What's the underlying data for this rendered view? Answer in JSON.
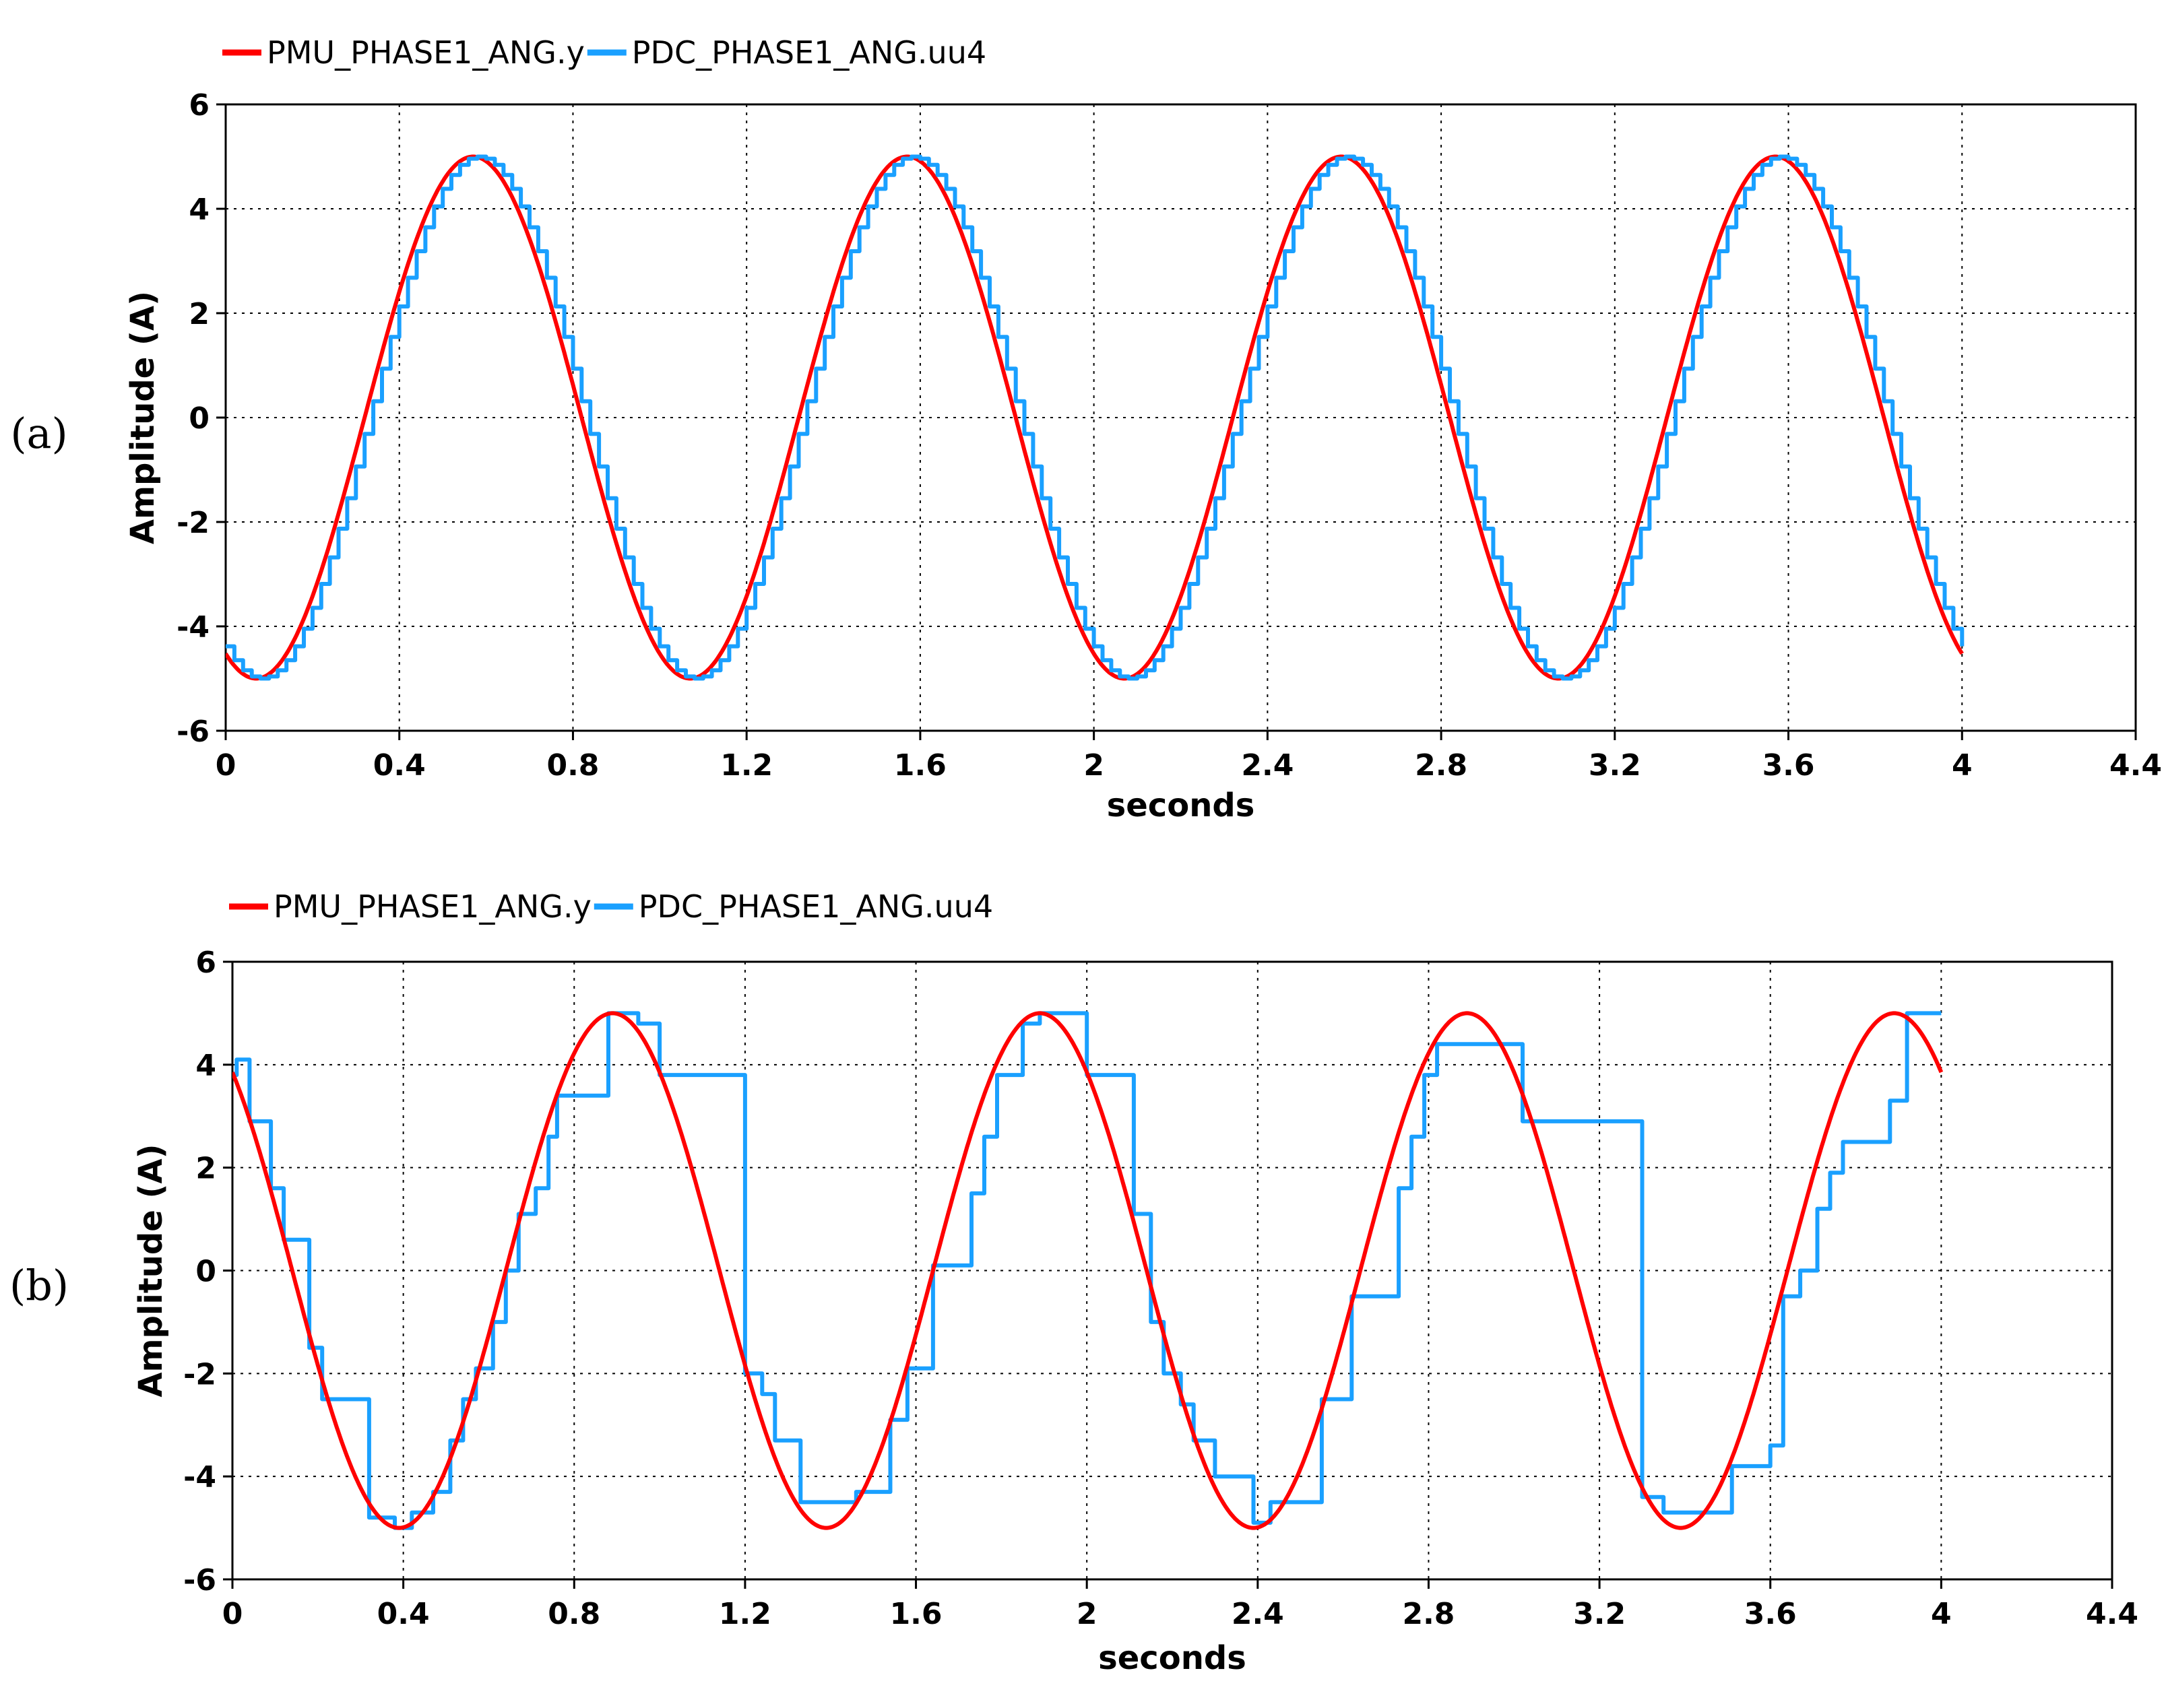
{
  "colors": {
    "pmu": "#ff0000",
    "pdc": "#1aa0ff",
    "grid": "#000000",
    "background": "#ffffff"
  },
  "chart_data": [
    {
      "type": "line",
      "panel_label": "(a)",
      "xlabel": "seconds",
      "ylabel": "Amplitude (A)",
      "xlim": [
        0,
        4.4
      ],
      "ylim": [
        -6,
        6
      ],
      "xticks": [
        "0",
        "0.4",
        "0.8",
        "1.2",
        "1.6",
        "2",
        "2.4",
        "2.8",
        "3.2",
        "3.6",
        "4",
        "4.4"
      ],
      "yticks": [
        "-6",
        "-4",
        "-2",
        "0",
        "2",
        "4",
        "6"
      ],
      "grid": true,
      "legend_position": "top-left",
      "series": [
        {
          "name": "PMU_PHASE1_ANG.y",
          "color": "#ff0000",
          "style": "sine",
          "x_range": [
            0,
            4.0
          ],
          "amplitude": 5,
          "period": 1.0,
          "peak_times": [
            0.57,
            1.57,
            2.57,
            3.57
          ],
          "trough_times": [
            0.07,
            1.07,
            2.07,
            3.07
          ],
          "y_at_start": -4.5,
          "y_at_end": -4.6
        },
        {
          "name": "PDC_PHASE1_ANG.uu4",
          "color": "#1aa0ff",
          "style": "sampled-step",
          "x_range": [
            0,
            4.0
          ],
          "amplitude": 5,
          "period": 1.0,
          "sample_interval": 0.02,
          "lag_seconds": 0.01,
          "y_at_start": -4.4,
          "y_at_end": -4.4
        }
      ]
    },
    {
      "type": "line",
      "panel_label": "(b)",
      "xlabel": "seconds",
      "ylabel": "Amplitude (A)",
      "xlim": [
        0,
        4.4
      ],
      "ylim": [
        -6,
        6
      ],
      "xticks": [
        "0",
        "0.4",
        "0.8",
        "1.2",
        "1.6",
        "2",
        "2.4",
        "2.8",
        "3.2",
        "3.6",
        "4",
        "4.4"
      ],
      "yticks": [
        "-6",
        "-4",
        "-2",
        "0",
        "2",
        "4",
        "6"
      ],
      "grid": true,
      "legend_position": "top-left",
      "series": [
        {
          "name": "PMU_PHASE1_ANG.y",
          "color": "#ff0000",
          "style": "sine",
          "x_range": [
            0,
            4.0
          ],
          "amplitude": 5,
          "period": 1.0,
          "peak_times": [
            0.89,
            1.89,
            2.89,
            3.89
          ],
          "trough_times": [
            0.39,
            1.39,
            2.39,
            3.39
          ],
          "y_at_start": 3.8,
          "y_at_end": 3.8
        },
        {
          "name": "PDC_PHASE1_ANG.uu4",
          "color": "#1aa0ff",
          "style": "step",
          "points": [
            [
              0.0,
              3.8
            ],
            [
              0.01,
              4.1
            ],
            [
              0.04,
              2.9
            ],
            [
              0.09,
              1.6
            ],
            [
              0.12,
              0.6
            ],
            [
              0.18,
              -1.5
            ],
            [
              0.21,
              -2.5
            ],
            [
              0.32,
              -4.8
            ],
            [
              0.38,
              -5.0
            ],
            [
              0.42,
              -4.7
            ],
            [
              0.47,
              -4.3
            ],
            [
              0.51,
              -3.3
            ],
            [
              0.54,
              -2.5
            ],
            [
              0.57,
              -1.9
            ],
            [
              0.61,
              -1.0
            ],
            [
              0.64,
              0.0
            ],
            [
              0.67,
              1.1
            ],
            [
              0.71,
              1.6
            ],
            [
              0.74,
              2.6
            ],
            [
              0.76,
              3.4
            ],
            [
              0.88,
              5.0
            ],
            [
              0.95,
              4.8
            ],
            [
              1.0,
              3.8
            ],
            [
              1.2,
              -2.0
            ],
            [
              1.24,
              -2.4
            ],
            [
              1.27,
              -3.3
            ],
            [
              1.33,
              -4.5
            ],
            [
              1.46,
              -4.3
            ],
            [
              1.54,
              -2.9
            ],
            [
              1.58,
              -1.9
            ],
            [
              1.64,
              0.1
            ],
            [
              1.73,
              1.5
            ],
            [
              1.76,
              2.6
            ],
            [
              1.79,
              3.8
            ],
            [
              1.85,
              4.8
            ],
            [
              1.89,
              5.0
            ],
            [
              2.0,
              3.8
            ],
            [
              2.11,
              1.1
            ],
            [
              2.15,
              -1.0
            ],
            [
              2.18,
              -2.0
            ],
            [
              2.22,
              -2.6
            ],
            [
              2.25,
              -3.3
            ],
            [
              2.3,
              -4.0
            ],
            [
              2.39,
              -4.9
            ],
            [
              2.43,
              -4.5
            ],
            [
              2.55,
              -2.5
            ],
            [
              2.62,
              -0.5
            ],
            [
              2.73,
              1.6
            ],
            [
              2.76,
              2.6
            ],
            [
              2.79,
              3.8
            ],
            [
              2.82,
              4.4
            ],
            [
              3.02,
              2.9
            ],
            [
              3.3,
              -4.4
            ],
            [
              3.35,
              -4.7
            ],
            [
              3.51,
              -3.8
            ],
            [
              3.6,
              -3.4
            ],
            [
              3.63,
              -0.5
            ],
            [
              3.67,
              0.0
            ],
            [
              3.71,
              1.2
            ],
            [
              3.74,
              1.9
            ],
            [
              3.77,
              2.5
            ],
            [
              3.88,
              3.3
            ],
            [
              3.92,
              5.0
            ],
            [
              4.0,
              5.0
            ]
          ]
        }
      ]
    }
  ]
}
